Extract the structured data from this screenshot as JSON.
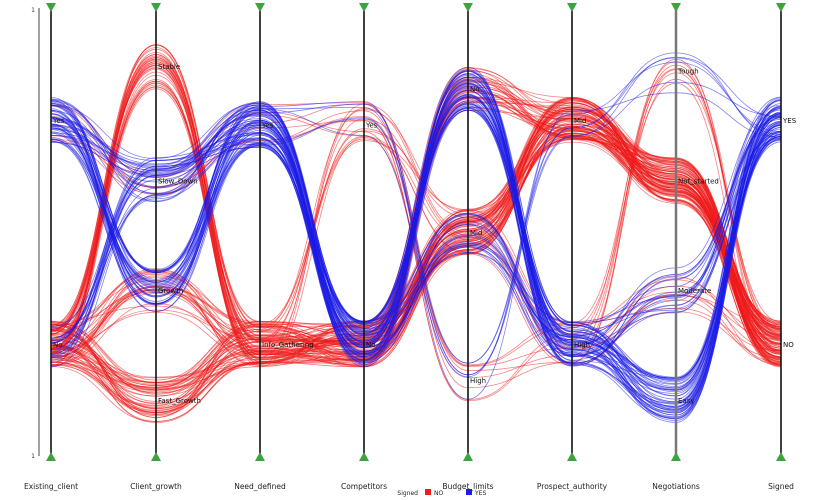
{
  "chart_data": {
    "type": "parallel-coordinates",
    "axis_top_label": "1",
    "axis_bottom_label": "1",
    "axes": [
      {
        "name": "Existing_client",
        "categories": [
          "Yes",
          "No"
        ],
        "positions": [
          0.25,
          0.75
        ]
      },
      {
        "name": "Client_growth",
        "categories": [
          "Stable",
          "Slow_Down",
          "Growth",
          "Fast_Growth"
        ],
        "positions": [
          0.13,
          0.385,
          0.63,
          0.875
        ]
      },
      {
        "name": "Need_defined",
        "categories": [
          "Yes",
          "Info_Gathering"
        ],
        "positions": [
          0.26,
          0.75
        ]
      },
      {
        "name": "Competitors",
        "categories": [
          "Yes",
          "No"
        ],
        "positions": [
          0.26,
          0.75
        ]
      },
      {
        "name": "Budget_limits",
        "categories": [
          "No",
          "Mid",
          "High"
        ],
        "positions": [
          0.18,
          0.5,
          0.83
        ]
      },
      {
        "name": "Prospect_authority",
        "categories": [
          "Mid",
          "High"
        ],
        "positions": [
          0.25,
          0.75
        ]
      },
      {
        "name": "Negotiations",
        "categories": [
          "Tough",
          "Not_started",
          "Moderate",
          "Easy"
        ],
        "positions": [
          0.14,
          0.385,
          0.63,
          0.875
        ]
      },
      {
        "name": "Signed",
        "categories": [
          "YES",
          "NO"
        ],
        "positions": [
          0.25,
          0.75
        ]
      }
    ],
    "legend": {
      "title": "Signed",
      "entries": [
        {
          "label": "NO",
          "color": "#ee1c1c"
        },
        {
          "label": "YES",
          "color": "#1c1ce6"
        }
      ],
      "placement": "bottom-center"
    },
    "series": [
      {
        "name": "NO",
        "color": "#ee1c1c",
        "bundles": [
          {
            "path": [
              1,
              0,
              1,
              1,
              0,
              0,
              1,
              1
            ],
            "count": 35
          },
          {
            "path": [
              1,
              2,
              1,
              1,
              1,
              0,
              1,
              1
            ],
            "count": 25
          },
          {
            "path": [
              1,
              3,
              1,
              1,
              1,
              0,
              1,
              1
            ],
            "count": 40
          },
          {
            "path": [
              0,
              1,
              0,
              0,
              2,
              1,
              0,
              1
            ],
            "count": 8
          },
          {
            "path": [
              1,
              3,
              1,
              0,
              1,
              1,
              2,
              1
            ],
            "count": 10
          }
        ]
      },
      {
        "name": "YES",
        "color": "#1c1ce6",
        "bundles": [
          {
            "path": [
              0,
              2,
              0,
              1,
              0,
              1,
              3,
              0
            ],
            "count": 30
          },
          {
            "path": [
              0,
              1,
              0,
              1,
              0,
              1,
              2,
              0
            ],
            "count": 20
          },
          {
            "path": [
              1,
              1,
              0,
              1,
              1,
              1,
              3,
              0
            ],
            "count": 20
          },
          {
            "path": [
              0,
              2,
              0,
              0,
              2,
              0,
              0,
              0
            ],
            "count": 6
          }
        ]
      }
    ]
  }
}
